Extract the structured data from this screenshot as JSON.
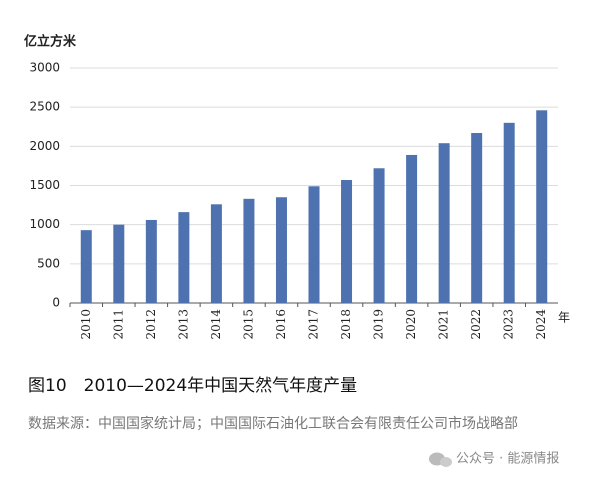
{
  "chart_data": {
    "type": "bar",
    "y_label": "亿立方米",
    "x_label": "年",
    "title": "图10　2010—2024年中国天然气年度产量",
    "source": "数据来源：中国国家统计局；中国国际石油化工联合会有限责任公司市场战略部",
    "watermark": "公众号 · 能源情报",
    "categories": [
      "2010",
      "2011",
      "2012",
      "2013",
      "2014",
      "2015",
      "2016",
      "2017",
      "2018",
      "2019",
      "2020",
      "2021",
      "2022",
      "2023",
      "2024"
    ],
    "values": [
      930,
      1000,
      1060,
      1160,
      1260,
      1330,
      1350,
      1490,
      1570,
      1720,
      1890,
      2040,
      2170,
      2300,
      2460
    ],
    "color": "#4e72b0",
    "ylim": [
      0,
      3000
    ],
    "yticks": [
      0,
      500,
      1000,
      1500,
      2000,
      2500,
      3000
    ],
    "grid": true
  }
}
